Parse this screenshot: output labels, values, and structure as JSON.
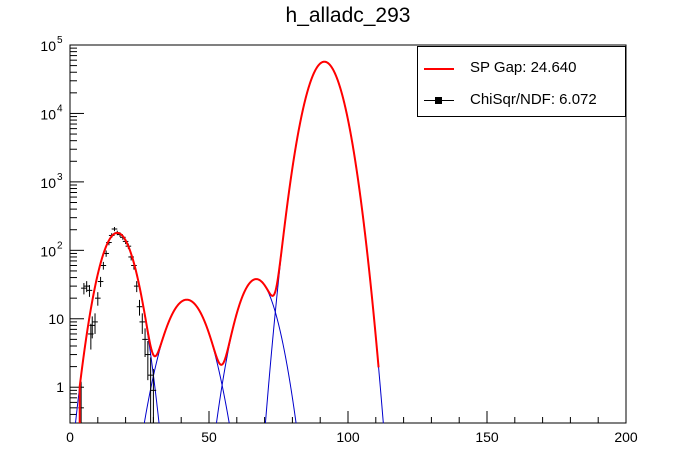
{
  "title": "h_alladc_293",
  "legend": [
    {
      "label": "SP Gap: 24.640",
      "color": "#ff0000",
      "style": "line"
    },
    {
      "label": "ChiSqr/NDF: 6.072",
      "color": "#000000",
      "style": "marker"
    }
  ],
  "chart_data": {
    "type": "line",
    "title": "h_alladc_293",
    "xlabel": "",
    "ylabel": "",
    "xlim": [
      0,
      200
    ],
    "ylim": [
      0.3,
      100000
    ],
    "yscale": "log",
    "xticks": [
      0,
      50,
      100,
      150,
      200
    ],
    "yticks": [
      {
        "value": 1,
        "label": "1"
      },
      {
        "value": 10,
        "label": "10"
      },
      {
        "value": 100,
        "label": "10",
        "exp": "2"
      },
      {
        "value": 1000,
        "label": "10",
        "exp": "3"
      },
      {
        "value": 10000,
        "label": "10",
        "exp": "4"
      },
      {
        "value": 100000,
        "label": "10",
        "exp": "5"
      }
    ],
    "grid": false,
    "legend_position": "top-right",
    "histogram_points": [
      {
        "x": 4,
        "y": 0.5
      },
      {
        "x": 5,
        "y": 28
      },
      {
        "x": 6,
        "y": 30
      },
      {
        "x": 7,
        "y": 26
      },
      {
        "x": 7.5,
        "y": 6
      },
      {
        "x": 8,
        "y": 8
      },
      {
        "x": 9,
        "y": 9
      },
      {
        "x": 10,
        "y": 20
      },
      {
        "x": 11,
        "y": 35
      },
      {
        "x": 12,
        "y": 60
      },
      {
        "x": 13,
        "y": 90
      },
      {
        "x": 14,
        "y": 130
      },
      {
        "x": 15,
        "y": 165
      },
      {
        "x": 16,
        "y": 205
      },
      {
        "x": 17,
        "y": 180
      },
      {
        "x": 18,
        "y": 170
      },
      {
        "x": 19,
        "y": 155
      },
      {
        "x": 20,
        "y": 135
      },
      {
        "x": 21,
        "y": 115
      },
      {
        "x": 22,
        "y": 80
      },
      {
        "x": 23,
        "y": 60
      },
      {
        "x": 24,
        "y": 30
      },
      {
        "x": 25,
        "y": 15
      },
      {
        "x": 26,
        "y": 9
      },
      {
        "x": 27,
        "y": 5
      },
      {
        "x": 28,
        "y": 3
      },
      {
        "x": 29,
        "y": 1.5
      },
      {
        "x": 30,
        "y": 0.9
      }
    ],
    "series": [
      {
        "name": "total fit",
        "color": "#ff0000",
        "components": [
          {
            "mean": 17,
            "sigma": 4.2,
            "amp": 180
          },
          {
            "mean": 42,
            "sigma": 5.3,
            "amp": 19
          },
          {
            "mean": 67,
            "sigma": 4.6,
            "amp": 38
          },
          {
            "mean": 91.5,
            "sigma": 4.3,
            "amp": 57000
          }
        ]
      },
      {
        "name": "components",
        "color": "#0000cc",
        "components": [
          {
            "mean": 17,
            "sigma": 4.2,
            "amp": 180
          },
          {
            "mean": 42,
            "sigma": 5.3,
            "amp": 19
          },
          {
            "mean": 67,
            "sigma": 4.6,
            "amp": 38
          },
          {
            "mean": 91.5,
            "sigma": 4.3,
            "amp": 57000
          }
        ]
      }
    ]
  }
}
